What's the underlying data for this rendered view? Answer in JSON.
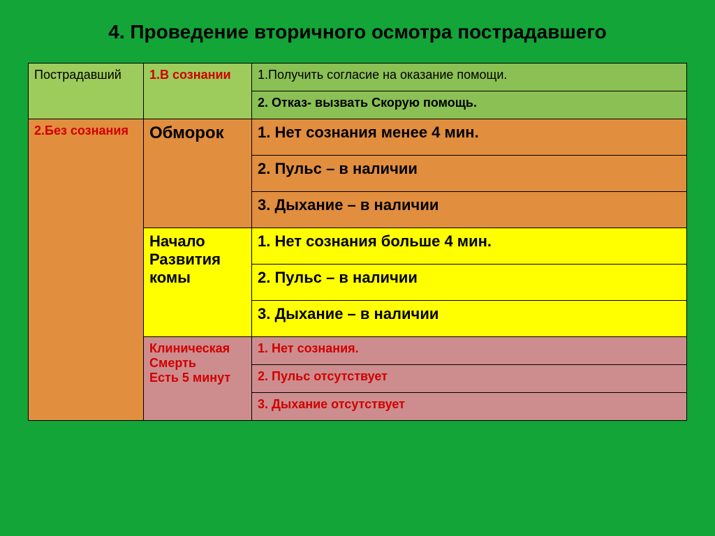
{
  "title": "4. Проведение вторичного осмотра пострадавшего",
  "col1": {
    "header": "Пострадавший",
    "unconscious": "2.Без сознания"
  },
  "section1": {
    "label": "1.В сознании",
    "r1": "1.Получить согласие на оказание помощи.",
    "r2": "2. Отказ- вызвать Скорую помощь."
  },
  "section2": {
    "label": "Обморок",
    "r1": "1. Нет сознания менее  4 мин.",
    "r2": "2. Пульс – в наличии",
    "r3": "3. Дыхание – в наличии"
  },
  "section3": {
    "line1": "Начало",
    "line2": "Развития",
    "line3": "комы",
    "r1": "1. Нет сознания больше 4 мин.",
    "r2": "2. Пульс – в наличии",
    "r3": "3. Дыхание – в наличии"
  },
  "section4": {
    "line1": "Клиническая",
    "line2": "Смерть",
    "line3": "Есть 5 минут",
    "r1": "1. Нет сознания.",
    "r2": "2. Пульс  отсутствует",
    "r3": "3. Дыхание отсутствует"
  },
  "colors": {
    "page_bg": "#13a538",
    "green1": "#9dcb5c",
    "green2": "#8ac054",
    "orange": "#e18e3f",
    "yellow": "#ffff00",
    "pink": "#cd8d8e",
    "red_text": "#d00000",
    "black_text": "#000000"
  }
}
